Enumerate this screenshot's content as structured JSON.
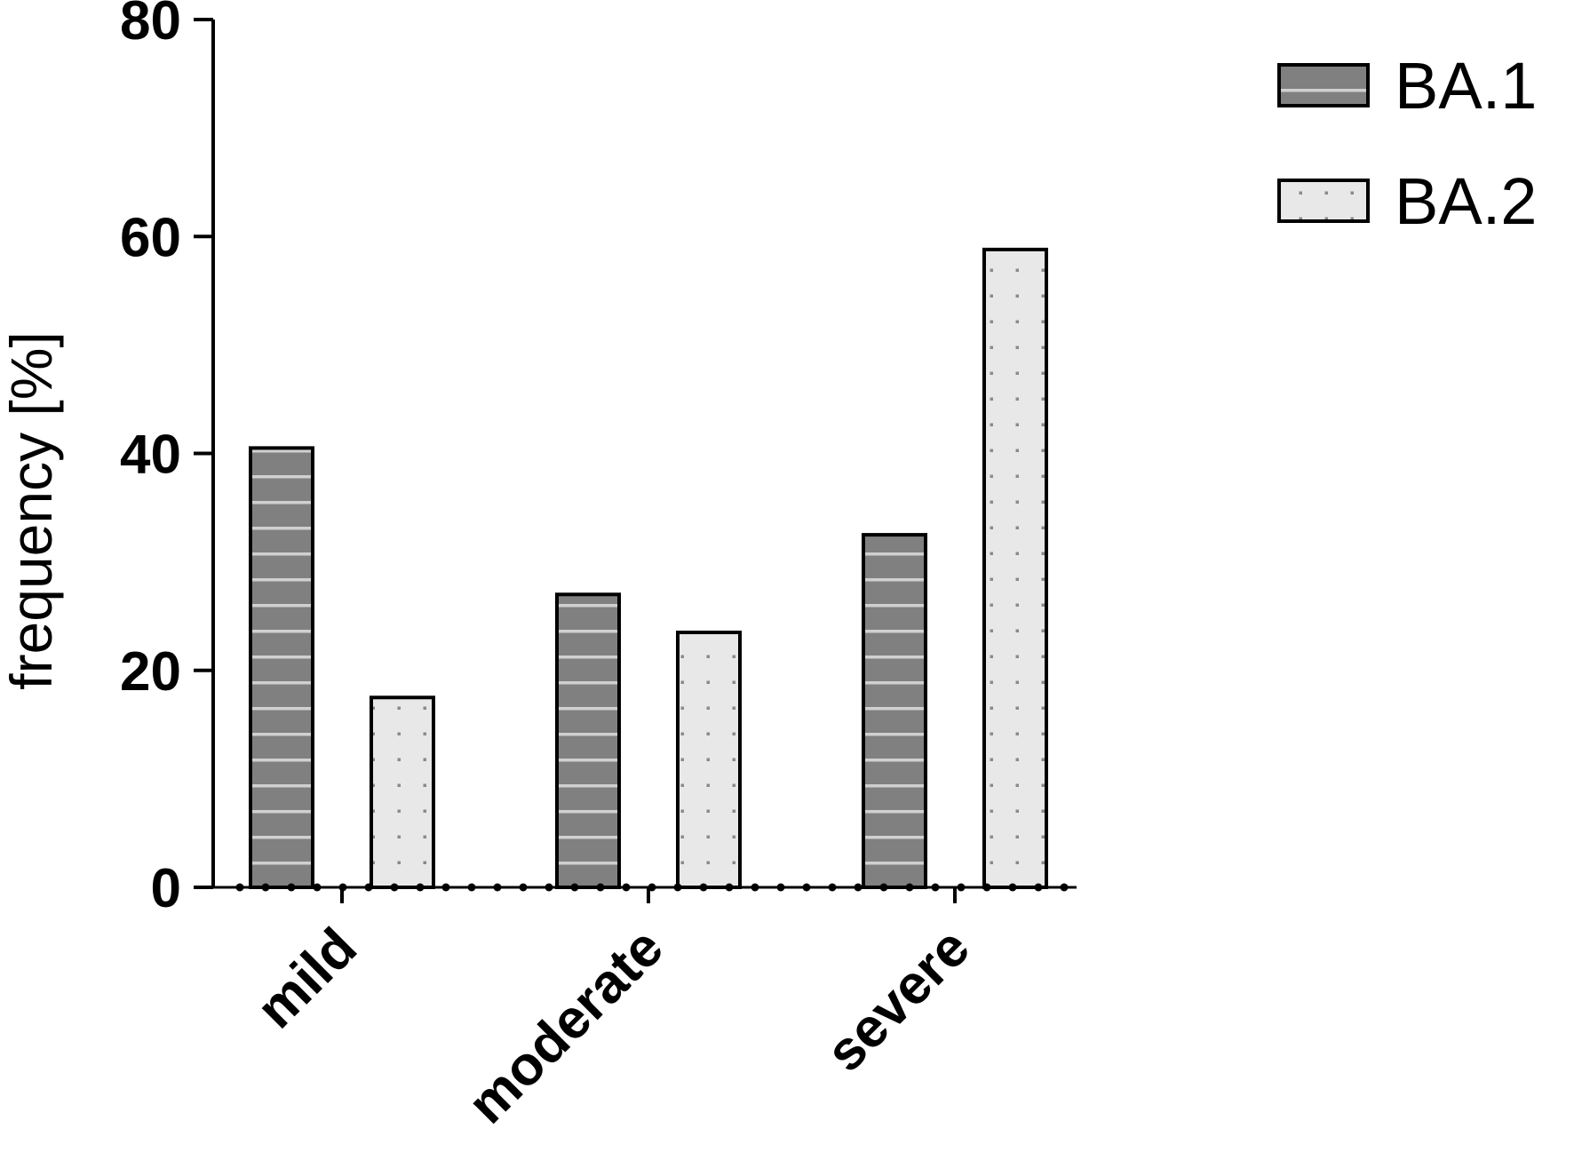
{
  "chart_data": {
    "type": "bar",
    "title": "",
    "xlabel": "",
    "ylabel": "frequency [%]",
    "categories": [
      "mild",
      "moderate",
      "severe"
    ],
    "series": [
      {
        "name": "BA.1",
        "values": [
          40.5,
          27.0,
          32.5
        ],
        "color": "#808080",
        "pattern": "horizontal-stripes"
      },
      {
        "name": "BA.2",
        "values": [
          17.5,
          23.5,
          58.8
        ],
        "color": "#e8e8e8",
        "pattern": "dots"
      }
    ],
    "ylim": [
      0,
      80
    ],
    "yticks": [
      "0",
      "20",
      "40",
      "60",
      "80"
    ],
    "grid": false,
    "legend": "top-right"
  }
}
